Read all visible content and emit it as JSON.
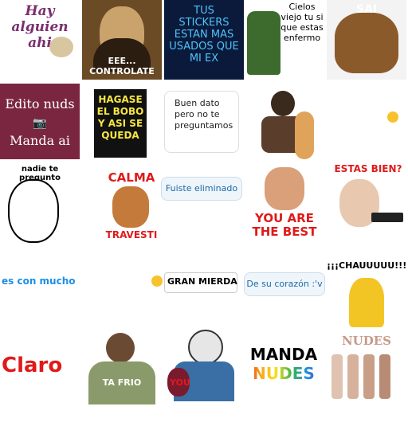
{
  "stickers": [
    {
      "name": "hay-alguien-ahi",
      "text": "Hay alguien ahi"
    },
    {
      "name": "mona-lisa-controlate",
      "text": "EEE... CONTROLATE"
    },
    {
      "name": "tus-stickers",
      "text": "TUS STICKERS ESTAN MAS USADOS QUE MI EX"
    },
    {
      "name": "cielos-viejo",
      "text": "Cielos viejo tu si que estas enfermo"
    },
    {
      "name": "perro-sai",
      "text": "SAI"
    },
    {
      "name": "edito-nuds",
      "line1": "Edito nuds",
      "line2": "Manda ai"
    },
    {
      "name": "hagase-el-bobo",
      "text": "HAGASE EL BOBO Y ASI SE QUEDA"
    },
    {
      "name": "buen-dato",
      "text": "Buen dato pero no te preguntamos"
    },
    {
      "name": "hombre-pan",
      "text": ""
    },
    {
      "name": "small-emoji",
      "text": ""
    },
    {
      "name": "meme-dibujo",
      "text": "nadie te pregunto"
    },
    {
      "name": "calma-travesti",
      "top": "CALMA",
      "bottom": "TRAVESTI"
    },
    {
      "name": "fuiste-eliminado",
      "text": "Fuiste eliminado"
    },
    {
      "name": "you-are-the-best",
      "text": "YOU ARE THE BEST"
    },
    {
      "name": "abuela-pistola",
      "text": "ESTAS BIEN?"
    },
    {
      "name": "es-con-mucho",
      "text": "es con mucho"
    },
    {
      "name": "gran-mierda",
      "text": "GRAN MIERDA"
    },
    {
      "name": "de-su-corazon",
      "text": "De su corazón :'v"
    },
    {
      "name": "chauuuu",
      "text": "¡¡¡CHAUUUUU!!!"
    },
    {
      "name": "claro",
      "text": "Claro"
    },
    {
      "name": "ta-frio",
      "text": "TA FRIO"
    },
    {
      "name": "jason-you",
      "text": "YOU"
    },
    {
      "name": "manda-nudes",
      "line1": "MANDA",
      "line2": "NUDES"
    },
    {
      "name": "nudes-esmaltes",
      "text": "NUDES"
    }
  ],
  "colors": {
    "purple": "#7a2e6e",
    "maroon": "#7b2641",
    "red": "#e01a1a",
    "blue": "#1e8fe6",
    "navy": "#0b1a3a",
    "green": "#3d6b2e"
  }
}
